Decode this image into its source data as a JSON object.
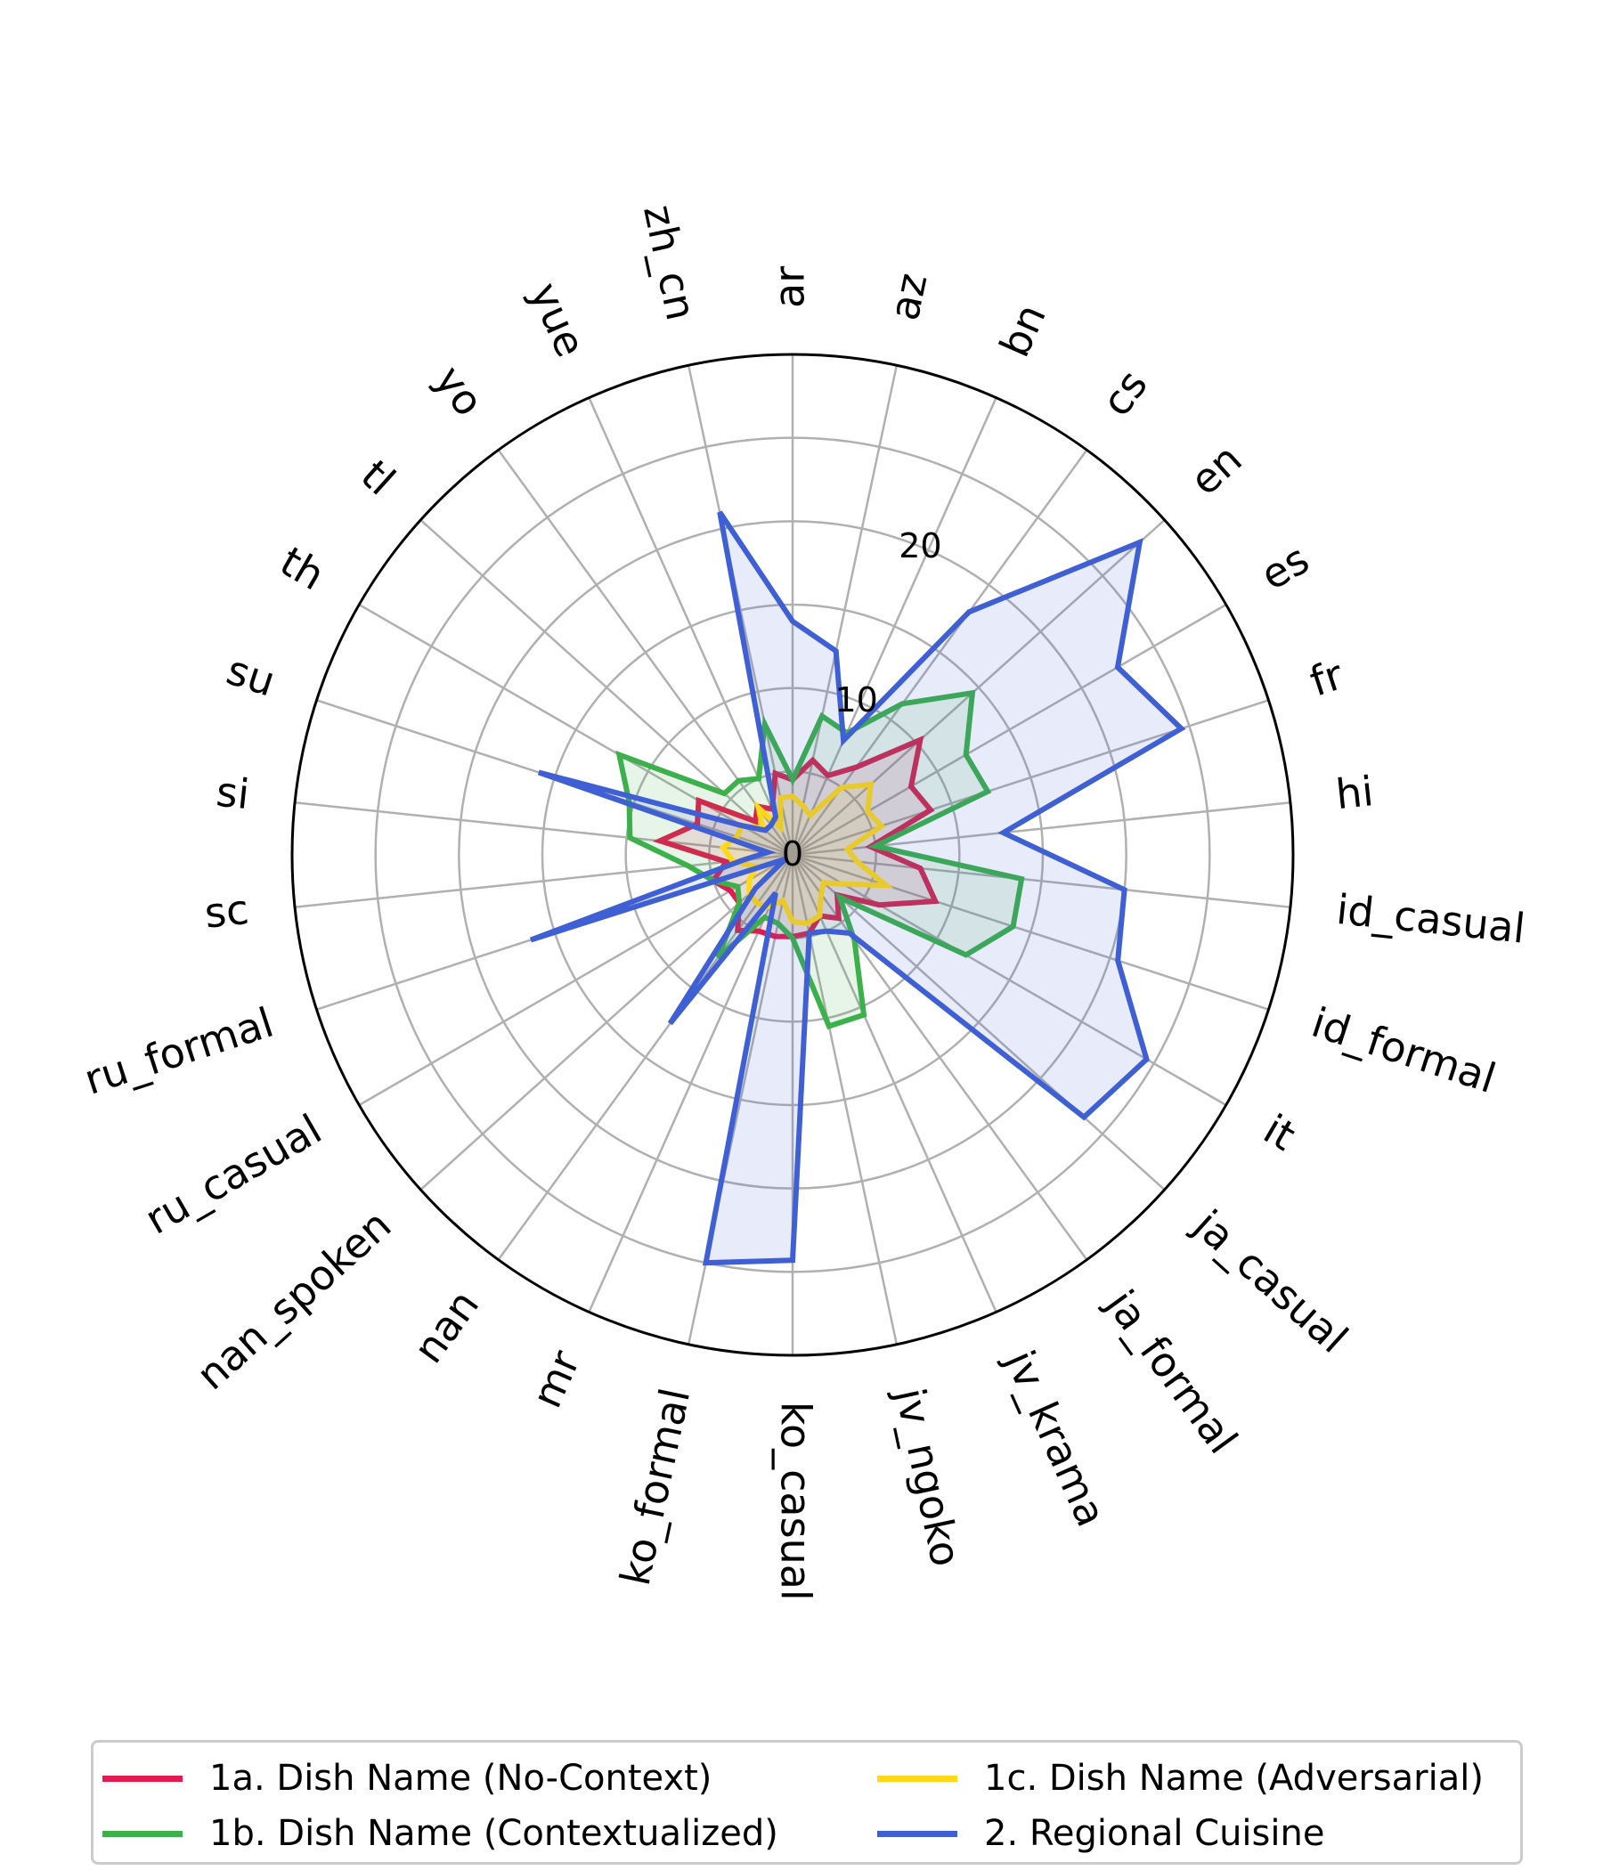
{
  "chart_data": {
    "type": "radar",
    "title": "",
    "categories": [
      "ar",
      "az",
      "bn",
      "cs",
      "en",
      "es",
      "fr",
      "hi",
      "id_casual",
      "id_formal",
      "it",
      "ja_casual",
      "ja_formal",
      "jv_krama",
      "jv_ngoko",
      "ko_casual",
      "ko_formal",
      "mr",
      "nan",
      "nan_spoken",
      "ru_casual",
      "ru_formal",
      "sc",
      "si",
      "su",
      "th",
      "tl",
      "yo",
      "yue",
      "zh_cn"
    ],
    "rlim": [
      0,
      30
    ],
    "rticks": [
      0,
      10,
      20
    ],
    "rtick_labels": [
      "0",
      "10",
      "20"
    ],
    "grid": true,
    "legend_position": "bottom",
    "series": [
      {
        "name": "1a. Dish Name (No-Context)",
        "color": "#e31a4f",
        "values": [
          4.5,
          5.8,
          5.2,
          6.5,
          10.3,
          8.2,
          8.7,
          4.7,
          7.7,
          9.0,
          6.0,
          3.6,
          4.7,
          4.0,
          4.8,
          4.9,
          5.0,
          5.0,
          5.6,
          4.3,
          4.3,
          5.0,
          4.0,
          8.0,
          6.0,
          6.5,
          3.0,
          3.6,
          3.0,
          5.0
        ]
      },
      {
        "name": "1b. Dish Name (Contextualized)",
        "color": "#3cb04a",
        "values": [
          4.5,
          8.5,
          8.0,
          11.2,
          14.5,
          12.0,
          12.3,
          5.0,
          13.8,
          13.9,
          12.0,
          3.8,
          6.3,
          10.5,
          10.5,
          5.0,
          4.2,
          4.1,
          7.6,
          4.3,
          3.8,
          5.0,
          6.3,
          9.8,
          10.3,
          12.0,
          5.5,
          5.5,
          5.0,
          8.0
        ]
      },
      {
        "name": "1c. Dish Name (Adversarial)",
        "color": "#ffd817",
        "values": [
          3.5,
          3.0,
          2.6,
          5.0,
          6.3,
          5.2,
          5.6,
          3.3,
          3.9,
          5.9,
          3.5,
          2.5,
          2.9,
          4.0,
          4.2,
          4.0,
          2.8,
          3.4,
          3.6,
          3.5,
          3.0,
          2.3,
          3.6,
          4.2,
          3.5,
          3.5,
          2.4,
          3.5,
          1.8,
          3.5
        ]
      },
      {
        "name": "2. Regional Cuisine",
        "color": "#3f5fd4",
        "values": [
          14.0,
          12.5,
          7.5,
          18.0,
          28.0,
          22.5,
          24.5,
          12.7,
          20.0,
          20.5,
          24.5,
          23.5,
          5.8,
          5.0,
          4.8,
          24.3,
          25.0,
          2.5,
          12.5,
          3.0,
          0.5,
          16.5,
          3.0,
          1.5,
          16.0,
          3.5,
          2.2,
          2.2,
          2.5,
          21.0
        ]
      }
    ]
  },
  "legend": {
    "items": [
      {
        "label": "1a. Dish Name (No-Context)",
        "color": "#e31a4f"
      },
      {
        "label": "1c. Dish Name (Adversarial)",
        "color": "#ffd817"
      },
      {
        "label": "1b. Dish Name (Contextualized)",
        "color": "#3cb04a"
      },
      {
        "label": "2. Regional Cuisine",
        "color": "#3f5fd4"
      }
    ]
  }
}
